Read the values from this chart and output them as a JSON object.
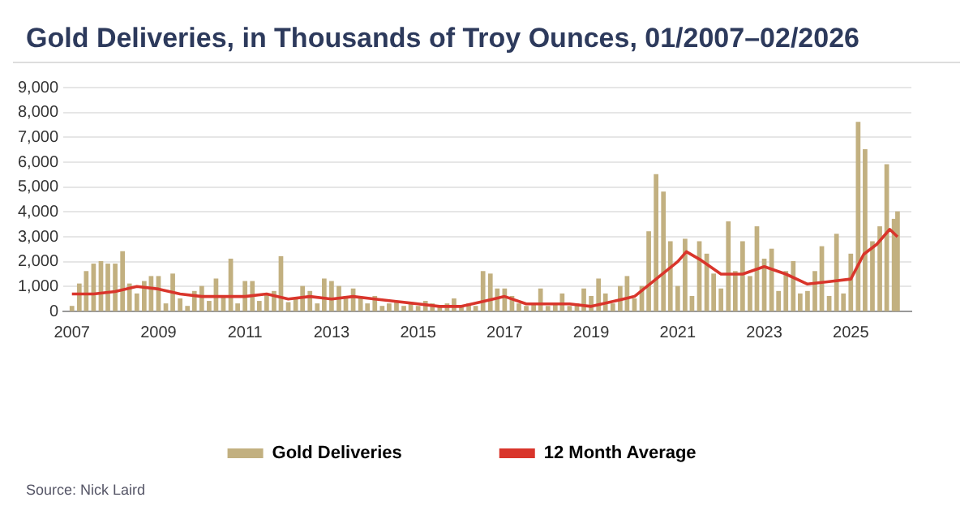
{
  "chart_data": {
    "type": "bar",
    "title": "Gold Deliveries, in Thousands of Troy Ounces, 01/2007–02/2026",
    "annotations": [
      "Source: Nick Laird"
    ],
    "series": [
      {
        "name": "Gold Deliveries",
        "color": "#c2b080",
        "x": [
          2007.0,
          2007.17,
          2007.33,
          2007.5,
          2007.67,
          2007.83,
          2008.0,
          2008.17,
          2008.33,
          2008.5,
          2008.67,
          2008.83,
          2009.0,
          2009.17,
          2009.33,
          2009.5,
          2009.67,
          2009.83,
          2010.0,
          2010.17,
          2010.33,
          2010.5,
          2010.67,
          2010.83,
          2011.0,
          2011.17,
          2011.33,
          2011.5,
          2011.67,
          2011.83,
          2012.0,
          2012.17,
          2012.33,
          2012.5,
          2012.67,
          2012.83,
          2013.0,
          2013.17,
          2013.33,
          2013.5,
          2013.67,
          2013.83,
          2014.0,
          2014.17,
          2014.33,
          2014.5,
          2014.67,
          2014.83,
          2015.0,
          2015.17,
          2015.33,
          2015.5,
          2015.67,
          2015.83,
          2016.0,
          2016.17,
          2016.33,
          2016.5,
          2016.67,
          2016.83,
          2017.0,
          2017.17,
          2017.33,
          2017.5,
          2017.67,
          2017.83,
          2018.0,
          2018.17,
          2018.33,
          2018.5,
          2018.67,
          2018.83,
          2019.0,
          2019.17,
          2019.33,
          2019.5,
          2019.67,
          2019.83,
          2020.0,
          2020.17,
          2020.33,
          2020.5,
          2020.67,
          2020.83,
          2021.0,
          2021.17,
          2021.33,
          2021.5,
          2021.67,
          2021.83,
          2022.0,
          2022.17,
          2022.33,
          2022.5,
          2022.67,
          2022.83,
          2023.0,
          2023.17,
          2023.33,
          2023.5,
          2023.67,
          2023.83,
          2024.0,
          2024.17,
          2024.33,
          2024.5,
          2024.67,
          2024.83,
          2025.0,
          2025.17,
          2025.33,
          2025.5,
          2025.67,
          2025.83,
          2026.0,
          2026.08
        ],
        "values": [
          200,
          1100,
          1600,
          1900,
          2000,
          1900,
          1900,
          2400,
          1100,
          700,
          1200,
          1400,
          1400,
          300,
          1500,
          500,
          200,
          800,
          1000,
          400,
          1300,
          600,
          2100,
          300,
          1200,
          1200,
          400,
          700,
          800,
          2200,
          350,
          500,
          1000,
          800,
          300,
          1300,
          1200,
          1000,
          600,
          900,
          500,
          300,
          600,
          200,
          300,
          400,
          200,
          300,
          200,
          400,
          300,
          200,
          300,
          500,
          200,
          300,
          200,
          1600,
          1500,
          900,
          900,
          600,
          300,
          200,
          300,
          900,
          200,
          300,
          700,
          200,
          300,
          900,
          600,
          1300,
          700,
          300,
          1000,
          1400,
          500,
          1000,
          3200,
          5500,
          4800,
          2800,
          1000,
          2900,
          600,
          2800,
          2300,
          1500,
          900,
          3600,
          1600,
          2800,
          1400,
          3400,
          2100,
          2500,
          800,
          1600,
          2000,
          700,
          800,
          1600,
          2600,
          600,
          3100,
          700,
          2300,
          7600,
          6500,
          2800,
          3400,
          5900,
          3700,
          4000
        ]
      },
      {
        "name": "12 Month Average",
        "type": "line",
        "color": "#d9352b",
        "x": [
          2007,
          2007.5,
          2008,
          2008.5,
          2009,
          2009.5,
          2010,
          2010.5,
          2011,
          2011.5,
          2012,
          2012.5,
          2013,
          2013.5,
          2014,
          2014.5,
          2015,
          2015.5,
          2016,
          2016.5,
          2017,
          2017.5,
          2018,
          2018.5,
          2019,
          2019.5,
          2020,
          2020.5,
          2021,
          2021.2,
          2021.5,
          2022,
          2022.5,
          2023,
          2023.5,
          2024,
          2024.5,
          2025,
          2025.3,
          2025.6,
          2025.9,
          2026.08
        ],
        "values": [
          700,
          700,
          800,
          1000,
          900,
          700,
          600,
          600,
          600,
          700,
          500,
          600,
          500,
          600,
          500,
          400,
          300,
          200,
          200,
          400,
          600,
          300,
          300,
          300,
          200,
          400,
          600,
          1300,
          2000,
          2400,
          2100,
          1500,
          1500,
          1800,
          1500,
          1100,
          1200,
          1300,
          2300,
          2700,
          3300,
          3000
        ]
      }
    ],
    "xlim": [
      2006.8,
      2026.4
    ],
    "xticks": [
      2007,
      2009,
      2011,
      2013,
      2015,
      2017,
      2019,
      2021,
      2023,
      2025
    ],
    "ylim": [
      0,
      9000
    ],
    "yticks": [
      0,
      {
        "value": 1000,
        "label": "1,000"
      },
      {
        "value": 2000,
        "label": "2,000"
      },
      {
        "value": 3000,
        "label": "3,000"
      },
      {
        "value": 4000,
        "label": "4,000"
      },
      {
        "value": 5000,
        "label": "5,000"
      },
      {
        "value": 6000,
        "label": "6,000"
      },
      {
        "value": 7000,
        "label": "7,000"
      },
      {
        "value": 8000,
        "label": "8,000"
      },
      {
        "value": 9000,
        "label": "9,000"
      }
    ],
    "grid": "y",
    "legend": "bottom",
    "marker": "none",
    "line_style": "solid"
  }
}
